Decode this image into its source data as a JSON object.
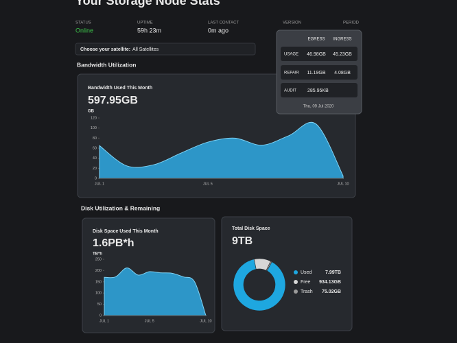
{
  "header": {
    "title": "Your Storage Node Stats"
  },
  "stats": [
    {
      "label": "STATUS",
      "value": "Online"
    },
    {
      "label": "UPTIME",
      "value": "59h 23m"
    },
    {
      "label": "LAST CONTACT",
      "value": "0m ago"
    },
    {
      "label": "VERSION"
    },
    {
      "label": "PERIOD"
    }
  ],
  "satellite": {
    "label": "Choose your satellite:",
    "value": "All Satellites"
  },
  "sections": {
    "bandwidth": "Bandwidth Utilization",
    "disk": "Disk Utilization & Remaining"
  },
  "tooltip": {
    "columns": [
      "EGRESS",
      "INGRESS"
    ],
    "rows": [
      {
        "label": "USAGE",
        "values": [
          "46.98GB",
          "45.23GB"
        ]
      },
      {
        "label": "REPAIR",
        "values": [
          "11.19GB",
          "4.08GB"
        ]
      },
      {
        "label": "AUDIT",
        "values": [
          "285.95KB"
        ]
      }
    ],
    "date": "Thu, 09 Jul 2020"
  },
  "chart_data": [
    {
      "type": "area",
      "title": "Bandwidth Used This Month",
      "subtitle": "597.95GB",
      "y_label": "GB",
      "categories": [
        "JUL 1",
        null,
        null,
        null,
        "JUL 5",
        null,
        null,
        null,
        null,
        "JUL 10"
      ],
      "values": [
        65,
        25,
        27,
        50,
        72,
        80,
        66,
        85,
        108,
        5
      ],
      "color": "#2fa9e3",
      "ylim": [
        0,
        120
      ],
      "yticks": [
        0,
        20,
        40,
        60,
        80,
        100,
        120
      ]
    },
    {
      "type": "area",
      "title": "Disk Space Used This Month",
      "subtitle": "1.6PB*h",
      "y_label": "TB*h",
      "categories": [
        "JUL 1",
        null,
        null,
        null,
        "JUL 5",
        null,
        null,
        null,
        null,
        "JUL 10"
      ],
      "values": [
        170,
        172,
        212,
        180,
        195,
        190,
        188,
        172,
        150,
        0
      ],
      "color": "#2fa9e3",
      "ylim": [
        0,
        250
      ],
      "yticks": [
        0,
        50,
        100,
        150,
        200,
        250
      ]
    },
    {
      "type": "pie",
      "title": "Total Disk Space",
      "subtitle": "9TB",
      "series": [
        {
          "name": "Used",
          "color": "#1ea7e0",
          "values": [
            7.99
          ],
          "value_labels": [
            "7.99TB"
          ]
        },
        {
          "name": "Free",
          "color": "#d6d6d6",
          "values": [
            0.93413
          ],
          "value_labels": [
            "934.13GB"
          ]
        },
        {
          "name": "Trash",
          "color": "#9a9a9a",
          "values": [
            0.07502
          ],
          "value_labels": [
            "75.02GB"
          ]
        }
      ]
    }
  ]
}
